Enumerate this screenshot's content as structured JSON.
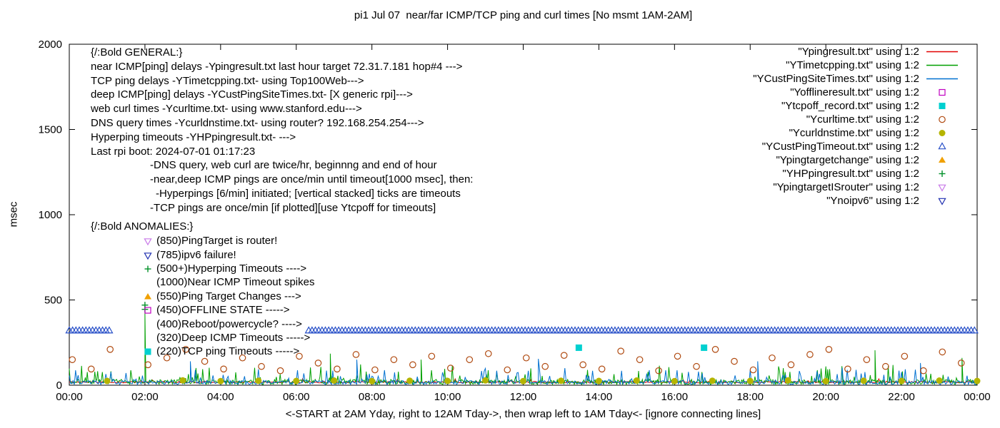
{
  "legend": {
    "items": [
      {
        "label": "\"Ypingresult.txt\" using 1:2",
        "marker": "line",
        "color": "#e10000"
      },
      {
        "label": "\"YTimetcpping.txt\" using 1:2",
        "marker": "line",
        "color": "#00a000"
      },
      {
        "label": "\"YCustPingSiteTimes.txt\" using 1:2",
        "marker": "line",
        "color": "#0070d0"
      },
      {
        "label": "\"Yofflineresult.txt\" using 1:2",
        "marker": "square-open",
        "color": "#c000c0"
      },
      {
        "label": "\"Ytcpoff_record.txt\" using 1:2",
        "marker": "square-filled",
        "color": "#00d0d0"
      },
      {
        "label": "\"Ycurltime.txt\" using 1:2",
        "marker": "circle-open",
        "color": "#b04a10"
      },
      {
        "label": "\"Ycurldnstime.txt\" using 1:2",
        "marker": "circle-filled",
        "color": "#b5b400"
      },
      {
        "label": "\"YCustPingTimeout.txt\" using 1:2",
        "marker": "triangle-up-open",
        "color": "#2850c8"
      },
      {
        "label": "\"Ypingtargetchange\" using 1:2",
        "marker": "triangle-up-filled",
        "color": "#f0a000"
      },
      {
        "label": "\"YHPpingresult.txt\" using 1:2",
        "marker": "plus",
        "color": "#009028"
      },
      {
        "label": "\"YpingtargetISrouter\" using 1:2",
        "marker": "triangle-down-open",
        "color": "#c878e8"
      },
      {
        "label": "\"Ynoipv6\" using 1:2",
        "marker": "triangle-down-open",
        "color": "#2030b0"
      }
    ]
  },
  "general": {
    "lines": [
      "{/:Bold GENERAL:}",
      "near ICMP[ping] delays -Ypingresult.txt last hour target 72.31.7.181 hop#4 --->",
      "TCP ping delays -YTimetcpping.txt- using Top100Web--->",
      "deep ICMP[ping] delays -YCustPingSiteTimes.txt- [X generic rpi]--->",
      "web curl times -Ycurltime.txt- using www.stanford.edu--->",
      "DNS query times -Ycurldnstime.txt- using router? 192.168.254.254--->",
      "Hyperping timeouts -YHPpingresult.txt- --->",
      "Last rpi boot: 2024-07-01 01:17:23",
      "-DNS query, web curl are twice/hr, beginnng and end of hour",
      "-near,deep ICMP pings are once/min until timeout[1000 msec], then:",
      "-Hyperpings [6/min] initiated; [vertical stacked] ticks are timeouts",
      "-TCP pings are once/min [if plotted][use Ytcpoff for timeouts]"
    ]
  },
  "anomalies": {
    "header": "{/:Bold ANOMALIES:}",
    "items": [
      {
        "marker": "triangle-down-open",
        "color": "#c878e8",
        "text": "(850)PingTarget is router!"
      },
      {
        "marker": "triangle-down-open",
        "color": "#2030b0",
        "text": "(785)ipv6 failure!"
      },
      {
        "marker": "plus",
        "color": "#009028",
        "text": "(500+)Hyperping Timeouts ---->"
      },
      {
        "marker": null,
        "color": null,
        "text": "(1000)Near ICMP Timeout spikes"
      },
      {
        "marker": "triangle-up-filled",
        "color": "#f0a000",
        "text": "(550)Ping Target Changes --->"
      },
      {
        "marker": "square-open",
        "color": "#c000c0",
        "text": "(450)OFFLINE STATE ----->"
      },
      {
        "marker": null,
        "color": null,
        "text": "(400)Reboot/powercycle? ---->"
      },
      {
        "marker": null,
        "color": null,
        "text": "(320)Deep ICMP Timeouts ----->"
      },
      {
        "marker": "square-filled",
        "color": "#00d0d0",
        "text": "(220)TCP ping Timeouts ----->"
      }
    ]
  },
  "chart_data": {
    "type": "line",
    "title": "pi1 Jul 07  near/far ICMP/TCP ping and curl times [No msmt 1AM-2AM]",
    "xlabel": "<-START at 2AM Yday, right to 12AM Tday->, then wrap left to 1AM Tday<- [ignore connecting lines]",
    "ylabel": "msec",
    "x_range_hours": [
      0,
      24
    ],
    "ylim": [
      0,
      2000
    ],
    "grid": false,
    "legend_position": "top-right-inside",
    "x_ticks": {
      "positions": [
        0,
        2,
        4,
        6,
        8,
        10,
        12,
        14,
        16,
        18,
        20,
        22,
        24
      ],
      "labels": [
        "00:00",
        "02:00",
        "04:00",
        "06:00",
        "08:00",
        "10:00",
        "12:00",
        "14:00",
        "16:00",
        "18:00",
        "20:00",
        "22:00",
        "00:00"
      ]
    },
    "y_ticks": {
      "positions": [
        0,
        500,
        1000,
        1500,
        2000
      ],
      "labels": [
        "0",
        "500",
        "1000",
        "1500",
        "2000"
      ]
    },
    "series": [
      {
        "name": "Ypingresult.txt",
        "type": "noisy-line",
        "color": "#e10000",
        "seed": 11,
        "step_min": 2,
        "base": 13,
        "amp": 10,
        "spike_prob": 0.02,
        "spike_amp": 22,
        "extra_spikes": []
      },
      {
        "name": "YTimetcpping.txt",
        "type": "noisy-line",
        "color": "#00a000",
        "seed": 7,
        "step_min": 1.5,
        "base": 4,
        "amp": 30,
        "spike_prob": 0.12,
        "spike_amp": 95,
        "extra_spikes": [
          [
            2.0,
            425
          ],
          [
            6.9,
            185
          ],
          [
            9.3,
            150
          ],
          [
            21.3,
            205
          ],
          [
            23.6,
            160
          ]
        ]
      },
      {
        "name": "YCustPingSiteTimes.txt",
        "type": "noisy-line",
        "color": "#0070d0",
        "seed": 23,
        "step_min": 2,
        "base": 4,
        "amp": 24,
        "spike_prob": 0.1,
        "spike_amp": 80,
        "extra_spikes": [
          [
            3.2,
            140
          ],
          [
            7.6,
            150
          ],
          [
            12.4,
            155
          ],
          [
            18.2,
            140
          ],
          [
            22.5,
            130
          ]
        ]
      },
      {
        "name": "Yofflineresult.txt",
        "type": "scatter",
        "marker": "square-open",
        "color": "#c000c0",
        "points": []
      },
      {
        "name": "Ytcpoff_record.txt",
        "type": "scatter",
        "marker": "square-filled",
        "color": "#00d0d0",
        "points": [
          [
            13.47,
            220
          ],
          [
            16.78,
            220
          ]
        ]
      },
      {
        "name": "Ycurltime.txt",
        "type": "scatter",
        "marker": "circle-open",
        "color": "#b04a10",
        "points": [
          [
            0.08,
            150
          ],
          [
            0.58,
            95
          ],
          [
            1.08,
            210
          ],
          [
            2.08,
            120
          ],
          [
            2.58,
            160
          ],
          [
            3.08,
            210
          ],
          [
            3.58,
            140
          ],
          [
            4.08,
            95
          ],
          [
            4.58,
            160
          ],
          [
            5.08,
            110
          ],
          [
            5.58,
            85
          ],
          [
            6.08,
            170
          ],
          [
            6.58,
            130
          ],
          [
            7.08,
            95
          ],
          [
            7.58,
            180
          ],
          [
            8.08,
            90
          ],
          [
            8.58,
            150
          ],
          [
            9.08,
            120
          ],
          [
            9.58,
            170
          ],
          [
            10.08,
            100
          ],
          [
            10.58,
            150
          ],
          [
            11.08,
            185
          ],
          [
            11.58,
            90
          ],
          [
            12.08,
            160
          ],
          [
            12.58,
            110
          ],
          [
            13.08,
            175
          ],
          [
            13.58,
            120
          ],
          [
            14.08,
            95
          ],
          [
            14.58,
            200
          ],
          [
            15.08,
            150
          ],
          [
            15.58,
            85
          ],
          [
            16.08,
            170
          ],
          [
            16.58,
            110
          ],
          [
            17.08,
            210
          ],
          [
            17.58,
            140
          ],
          [
            18.08,
            90
          ],
          [
            18.58,
            160
          ],
          [
            19.08,
            120
          ],
          [
            19.58,
            180
          ],
          [
            20.08,
            210
          ],
          [
            20.58,
            95
          ],
          [
            21.08,
            150
          ],
          [
            21.58,
            110
          ],
          [
            22.08,
            170
          ],
          [
            22.58,
            85
          ],
          [
            23.08,
            195
          ],
          [
            23.58,
            130
          ]
        ]
      },
      {
        "name": "Ycurldnstime.txt",
        "type": "scatter",
        "marker": "circle-filled",
        "color": "#b5b400",
        "points": [
          [
            1,
            25
          ],
          [
            3,
            28
          ],
          [
            4,
            24
          ],
          [
            5,
            26
          ],
          [
            6,
            25
          ],
          [
            7,
            27
          ],
          [
            8,
            24
          ],
          [
            9,
            26
          ],
          [
            10,
            25
          ],
          [
            11,
            28
          ],
          [
            12,
            24
          ],
          [
            13,
            26
          ],
          [
            14,
            25
          ],
          [
            15,
            27
          ],
          [
            16,
            24
          ],
          [
            17,
            26
          ],
          [
            18,
            25
          ],
          [
            19,
            28
          ],
          [
            20,
            24
          ],
          [
            21,
            26
          ],
          [
            22,
            25
          ],
          [
            23,
            27
          ],
          [
            24,
            25
          ]
        ]
      },
      {
        "name": "YCustPingTimeout.txt",
        "type": "band",
        "marker": "triangle-up-open",
        "color": "#2850c8",
        "value": 320,
        "bands": [
          [
            0,
            1.08
          ],
          [
            6.33,
            24
          ]
        ],
        "step_h": 0.088
      },
      {
        "name": "Ypingtargetchange",
        "type": "scatter",
        "marker": "triangle-up-filled",
        "color": "#f0a000",
        "points": []
      },
      {
        "name": "YHPpingresult.txt",
        "type": "scatter",
        "marker": "plus",
        "color": "#009028",
        "points": [
          [
            2.0,
            445
          ],
          [
            2.0,
            470
          ]
        ]
      },
      {
        "name": "YpingtargetISrouter",
        "type": "scatter",
        "marker": "triangle-down-open",
        "color": "#c878e8",
        "points": []
      },
      {
        "name": "Ynoipv6",
        "type": "scatter",
        "marker": "triangle-down-open",
        "color": "#2030b0",
        "points": []
      }
    ]
  }
}
